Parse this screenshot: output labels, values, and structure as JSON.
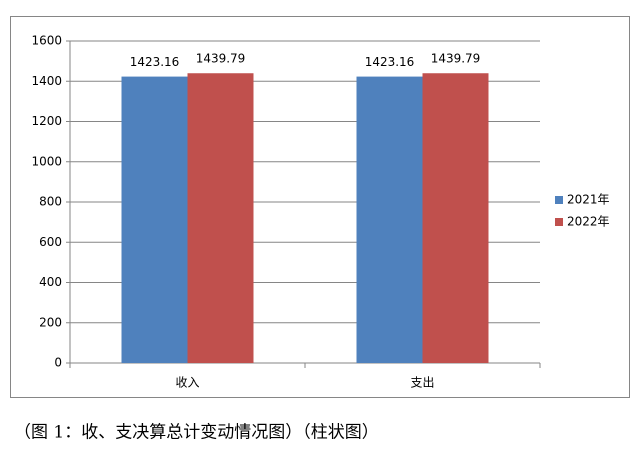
{
  "chart_data": {
    "type": "bar",
    "categories": [
      "收入",
      "支出"
    ],
    "series": [
      {
        "name": "2021年",
        "color": "#4f81bd",
        "values": [
          1423.16,
          1423.16
        ]
      },
      {
        "name": "2022年",
        "color": "#c0504d",
        "values": [
          1439.79,
          1439.79
        ]
      }
    ],
    "ylim": [
      0,
      1600
    ],
    "yticks": [
      0,
      200,
      400,
      600,
      800,
      1000,
      1200,
      1400,
      1600
    ],
    "grid": true,
    "legend": "right",
    "caption": "（图 1：收、支决算总计变动情况图）（柱状图）"
  }
}
